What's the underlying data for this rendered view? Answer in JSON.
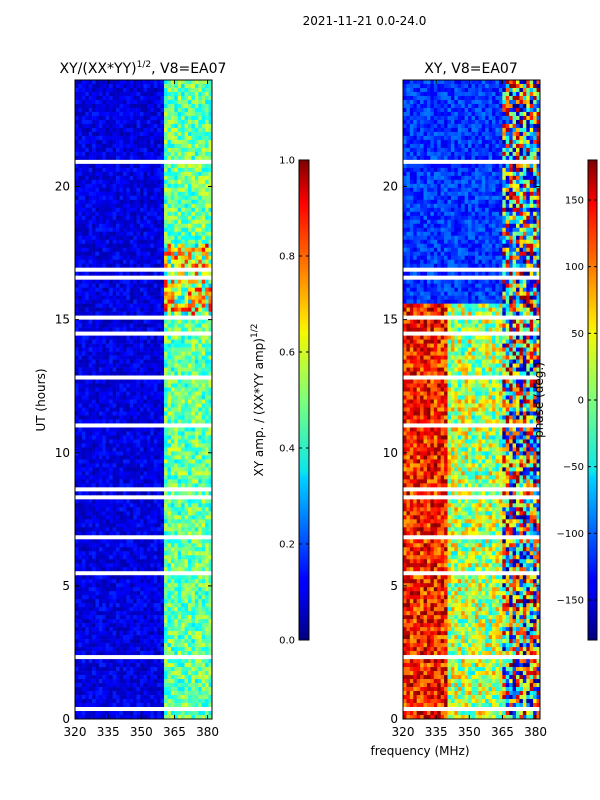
{
  "suptitle": "2021-11-21 0.0-24.0",
  "chart_data": [
    {
      "type": "heatmap",
      "title_main": "XY/(XX*YY)",
      "title_exp": "1/2",
      "title_suffix": ", V8=EA07",
      "xlabel": "",
      "ylabel": "UT (hours)",
      "xlim": [
        320,
        382
      ],
      "ylim": [
        0,
        24
      ],
      "xticks": [
        320,
        335,
        350,
        365,
        380
      ],
      "yticks": [
        0,
        5,
        10,
        15,
        20
      ],
      "colorbar": {
        "label_main": "XY amp. / (XX*YY amp)",
        "label_exp": "1/2",
        "range": [
          0.0,
          1.0
        ],
        "ticks": [
          "0.0",
          "0.2",
          "0.4",
          "0.6",
          "0.8",
          "1.0"
        ],
        "tick_values": [
          0.0,
          0.2,
          0.4,
          0.6,
          0.8,
          1.0
        ],
        "colormap": "jet"
      },
      "description_values": {
        "low_band_320_360": 0.08,
        "high_band_360_382": 0.45
      }
    },
    {
      "type": "heatmap",
      "title": "XY, V8=EA07",
      "xlabel": "frequency (MHz)",
      "ylabel": "",
      "xlim": [
        320,
        382
      ],
      "ylim": [
        0,
        24
      ],
      "xticks": [
        320,
        335,
        350,
        365,
        380
      ],
      "yticks": [
        0,
        5,
        10,
        15,
        20
      ],
      "colorbar": {
        "label": "phase (deg.)",
        "range": [
          -180,
          180
        ],
        "ticks": [
          "−150",
          "−100",
          "−50",
          "0",
          "50",
          "100",
          "150"
        ],
        "tick_values": [
          -150,
          -100,
          -50,
          0,
          50,
          100,
          150
        ],
        "colormap": "jet"
      }
    }
  ]
}
